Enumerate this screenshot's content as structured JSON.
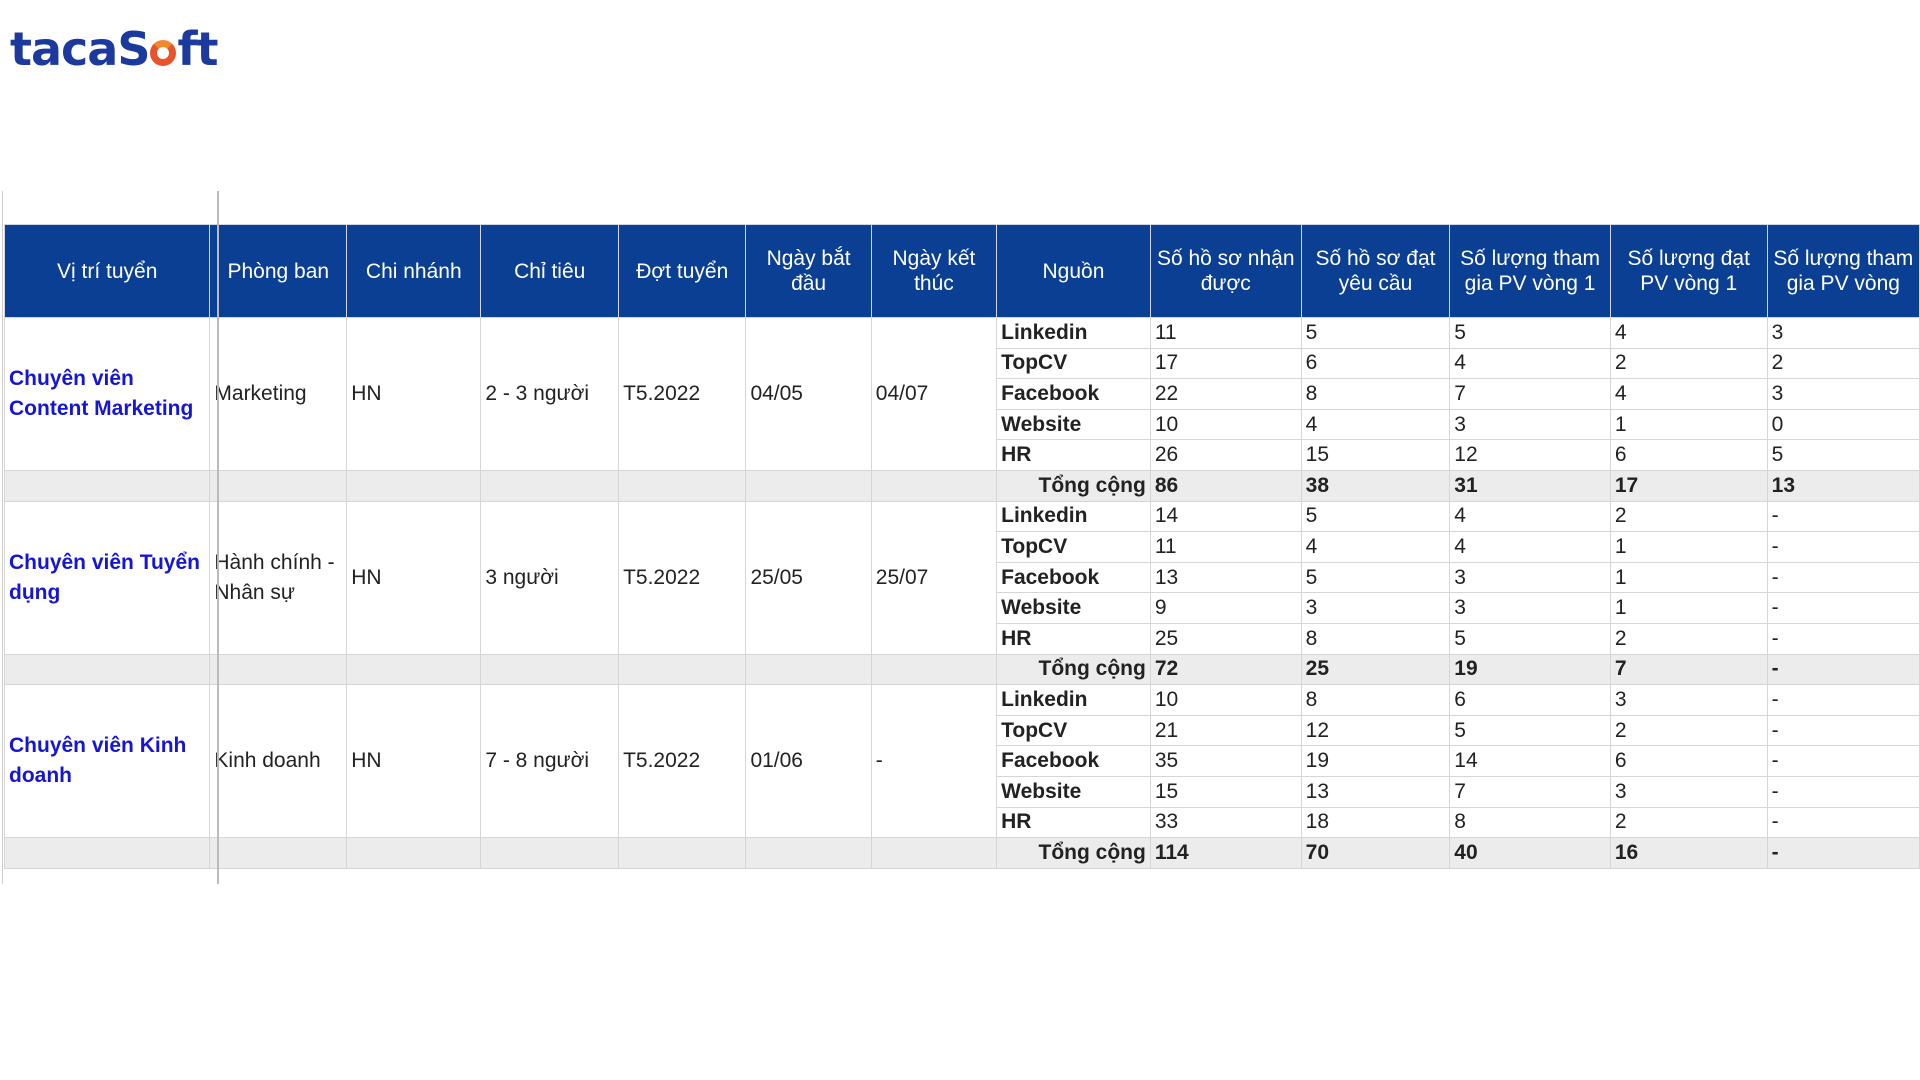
{
  "logo": {
    "text": "tacaSoft",
    "colors": {
      "primary": "#1c3a9e",
      "accent": "#e8542a"
    }
  },
  "table": {
    "headers": [
      "Vị trí tuyển",
      "Phòng ban",
      "Chi nhánh",
      "Chỉ tiêu",
      "Đợt tuyển",
      "Ngày bắt đầu",
      "Ngày kết thúc",
      "Nguồn",
      "Số hồ sơ nhận được",
      "Số hồ sơ đạt yêu cầu",
      "Số lượng tham gia PV vòng 1",
      "Số lượng đạt PV vòng 1",
      "Số lượng tham gia PV vòng"
    ],
    "total_label": "Tổng cộng",
    "groups": [
      {
        "position": "Chuyên viên Content Marketing",
        "department": "Marketing",
        "branch": "HN",
        "target": "2 - 3 người",
        "batch": "T5.2022",
        "start": "04/05",
        "end": "04/07",
        "rows": [
          [
            "Linkedin",
            "11",
            "5",
            "5",
            "4",
            "3"
          ],
          [
            "TopCV",
            "17",
            "6",
            "4",
            "2",
            "2"
          ],
          [
            "Facebook",
            "22",
            "8",
            "7",
            "4",
            "3"
          ],
          [
            "Website",
            "10",
            "4",
            "3",
            "1",
            "0"
          ],
          [
            "HR",
            "26",
            "15",
            "12",
            "6",
            "5"
          ]
        ],
        "total": [
          "86",
          "38",
          "31",
          "17",
          "13"
        ]
      },
      {
        "position": "Chuyên viên Tuyển dụng",
        "department": "Hành chính - Nhân sự",
        "branch": "HN",
        "target": "3 người",
        "batch": "T5.2022",
        "start": "25/05",
        "end": "25/07",
        "rows": [
          [
            "Linkedin",
            "14",
            "5",
            "4",
            "2",
            "-"
          ],
          [
            "TopCV",
            "11",
            "4",
            "4",
            "1",
            "-"
          ],
          [
            "Facebook",
            "13",
            "5",
            "3",
            "1",
            "-"
          ],
          [
            "Website",
            "9",
            "3",
            "3",
            "1",
            "-"
          ],
          [
            "HR",
            "25",
            "8",
            "5",
            "2",
            "-"
          ]
        ],
        "total": [
          "72",
          "25",
          "19",
          "7",
          "-"
        ]
      },
      {
        "position": "Chuyên viên Kinh doanh",
        "department": "Kinh doanh",
        "branch": "HN",
        "target": "7 - 8 người",
        "batch": "T5.2022",
        "start": "01/06",
        "end": "-",
        "rows": [
          [
            "Linkedin",
            "10",
            "8",
            "6",
            "3",
            "-"
          ],
          [
            "TopCV",
            "21",
            "12",
            "5",
            "2",
            "-"
          ],
          [
            "Facebook",
            "35",
            "19",
            "14",
            "6",
            "-"
          ],
          [
            "Website",
            "15",
            "13",
            "7",
            "3",
            "-"
          ],
          [
            "HR",
            "33",
            "18",
            "8",
            "2",
            "-"
          ]
        ],
        "total": [
          "114",
          "70",
          "40",
          "16",
          "-"
        ]
      }
    ]
  }
}
